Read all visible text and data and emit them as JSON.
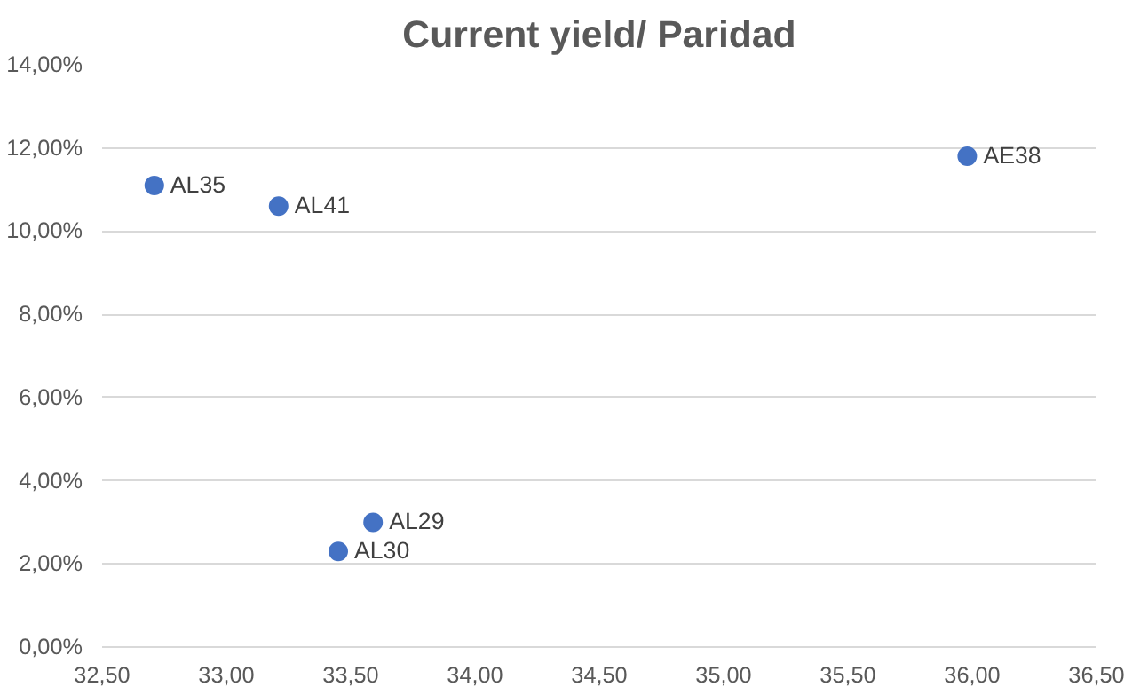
{
  "chart_data": {
    "type": "scatter",
    "title": "Current yield/ Paridad",
    "x": [
      32.71,
      33.21,
      35.98,
      33.59,
      33.45
    ],
    "values": [
      11.1,
      10.6,
      11.8,
      3.0,
      2.3
    ],
    "color": "#4472c4",
    "marker": "circle",
    "grid": "y",
    "xlim": [
      32.5,
      36.5
    ],
    "xticks": [
      {
        "value": 32.5,
        "label": "32,50"
      },
      {
        "value": 33,
        "label": "33,00"
      },
      {
        "value": 33.5,
        "label": "33,50"
      },
      {
        "value": 34,
        "label": "34,00"
      },
      {
        "value": 34.5,
        "label": "34,50"
      },
      {
        "value": 35,
        "label": "35,00"
      },
      {
        "value": 35.5,
        "label": "35,50"
      },
      {
        "value": 36,
        "label": "36,00"
      },
      {
        "value": 36.5,
        "label": "36,50"
      }
    ],
    "ylim": [
      0,
      14
    ],
    "yticks": [
      {
        "value": 0,
        "label": "0,00%"
      },
      {
        "value": 2,
        "label": "2,00%"
      },
      {
        "value": 4,
        "label": "4,00%"
      },
      {
        "value": 6,
        "label": "6,00%"
      },
      {
        "value": 8,
        "label": "8,00%"
      },
      {
        "value": 10,
        "label": "10,00%"
      },
      {
        "value": 12,
        "label": "12,00%"
      },
      {
        "value": 14,
        "label": "14,00%"
      }
    ],
    "annotations": [
      {
        "text": "AL35",
        "x": 32.71,
        "y": 11.1
      },
      {
        "text": "AL41",
        "x": 33.21,
        "y": 10.6
      },
      {
        "text": "AE38",
        "x": 35.98,
        "y": 11.8
      },
      {
        "text": "AL29",
        "x": 33.59,
        "y": 3.0
      },
      {
        "text": "AL30",
        "x": 33.45,
        "y": 2.3
      }
    ]
  }
}
